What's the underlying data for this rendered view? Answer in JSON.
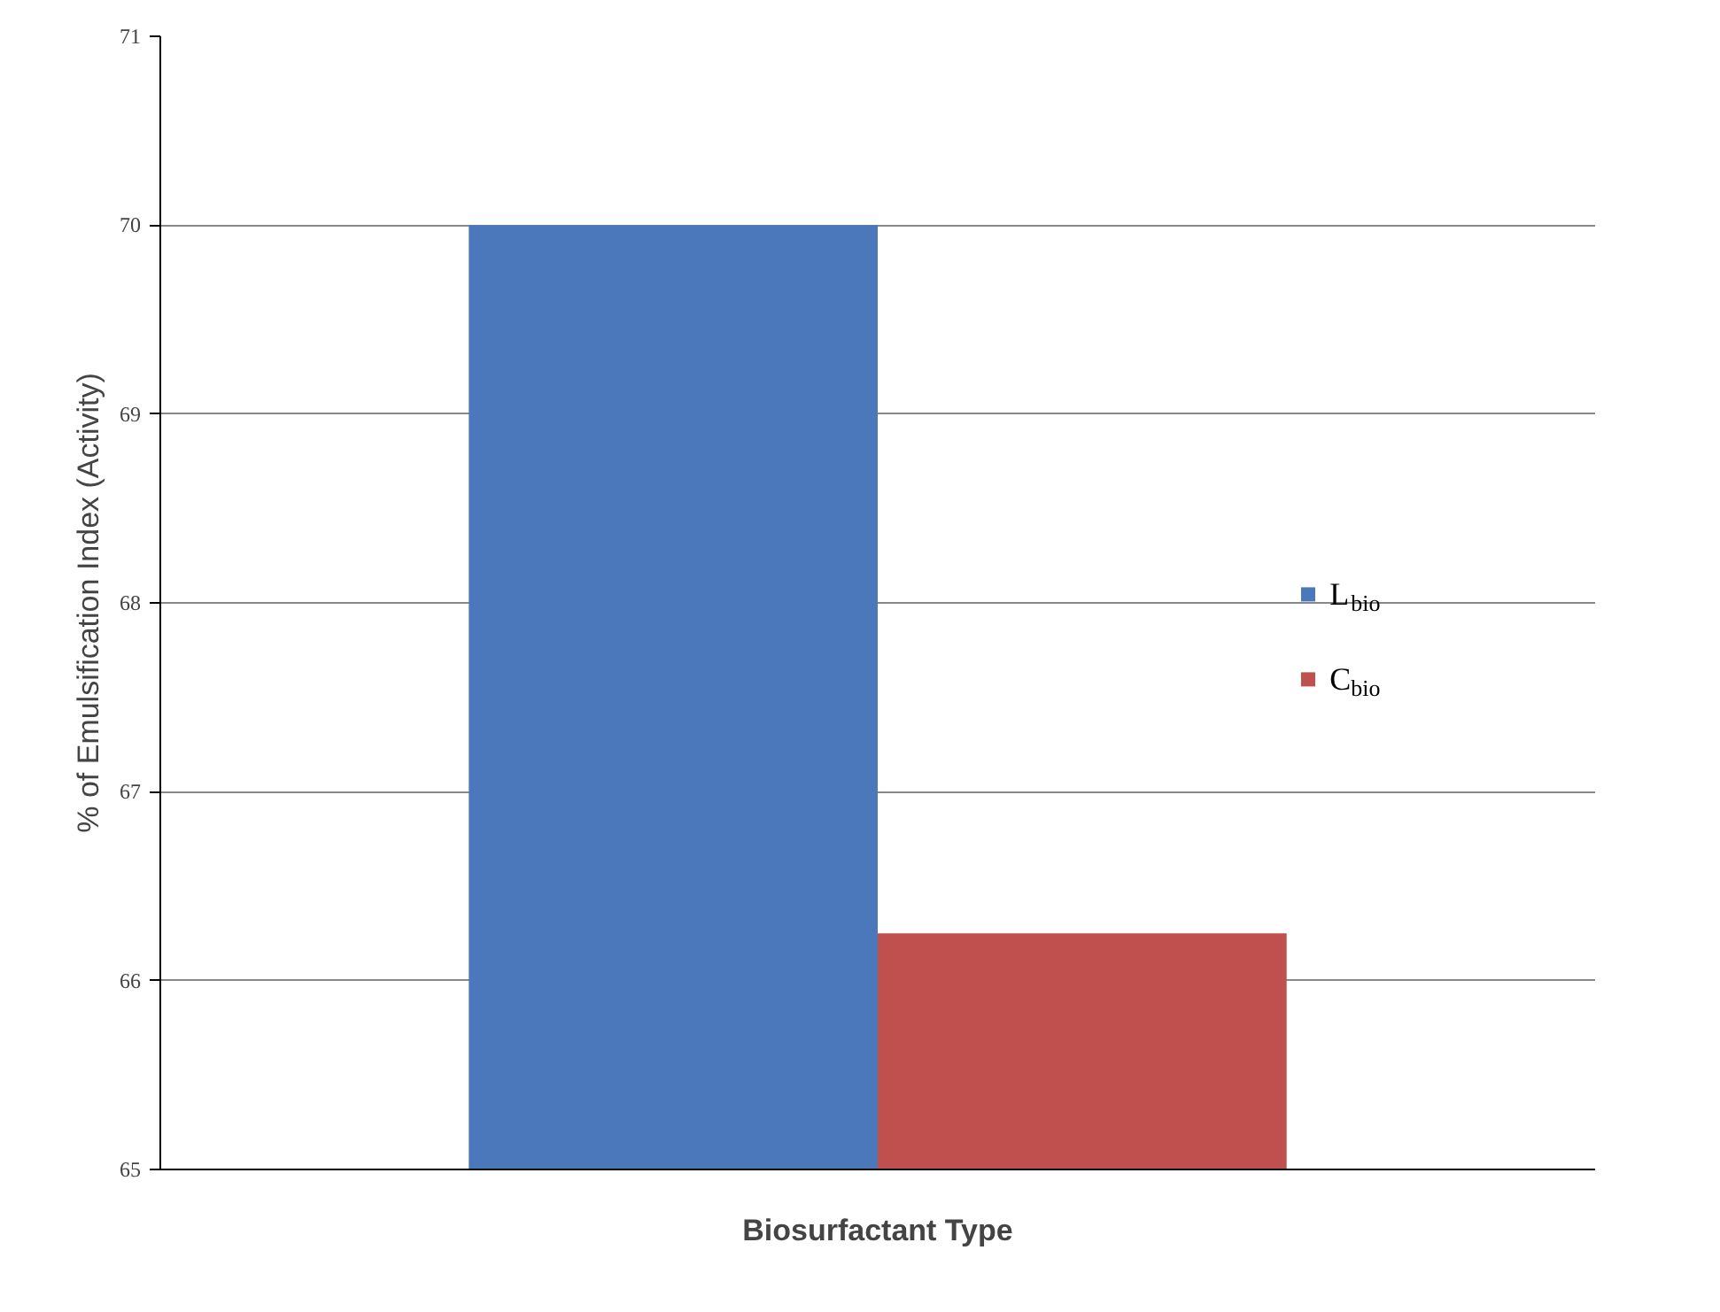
{
  "chart_data": {
    "type": "bar",
    "xlabel": "Biosurfactant Type",
    "ylabel": "% of Emulsification Index (Activity)",
    "categories": [
      null
    ],
    "series": [
      {
        "name": "L$_{bio}$",
        "color": "#4a78bb",
        "values": [
          70
        ]
      },
      {
        "name": "C$_{bio}$",
        "color": "#c0504d",
        "values": [
          66.25
        ]
      }
    ],
    "ylim": [
      65,
      71
    ],
    "yticks": [
      65,
      66,
      67,
      68,
      69,
      70,
      71
    ],
    "grid": "y",
    "legend": "right"
  }
}
